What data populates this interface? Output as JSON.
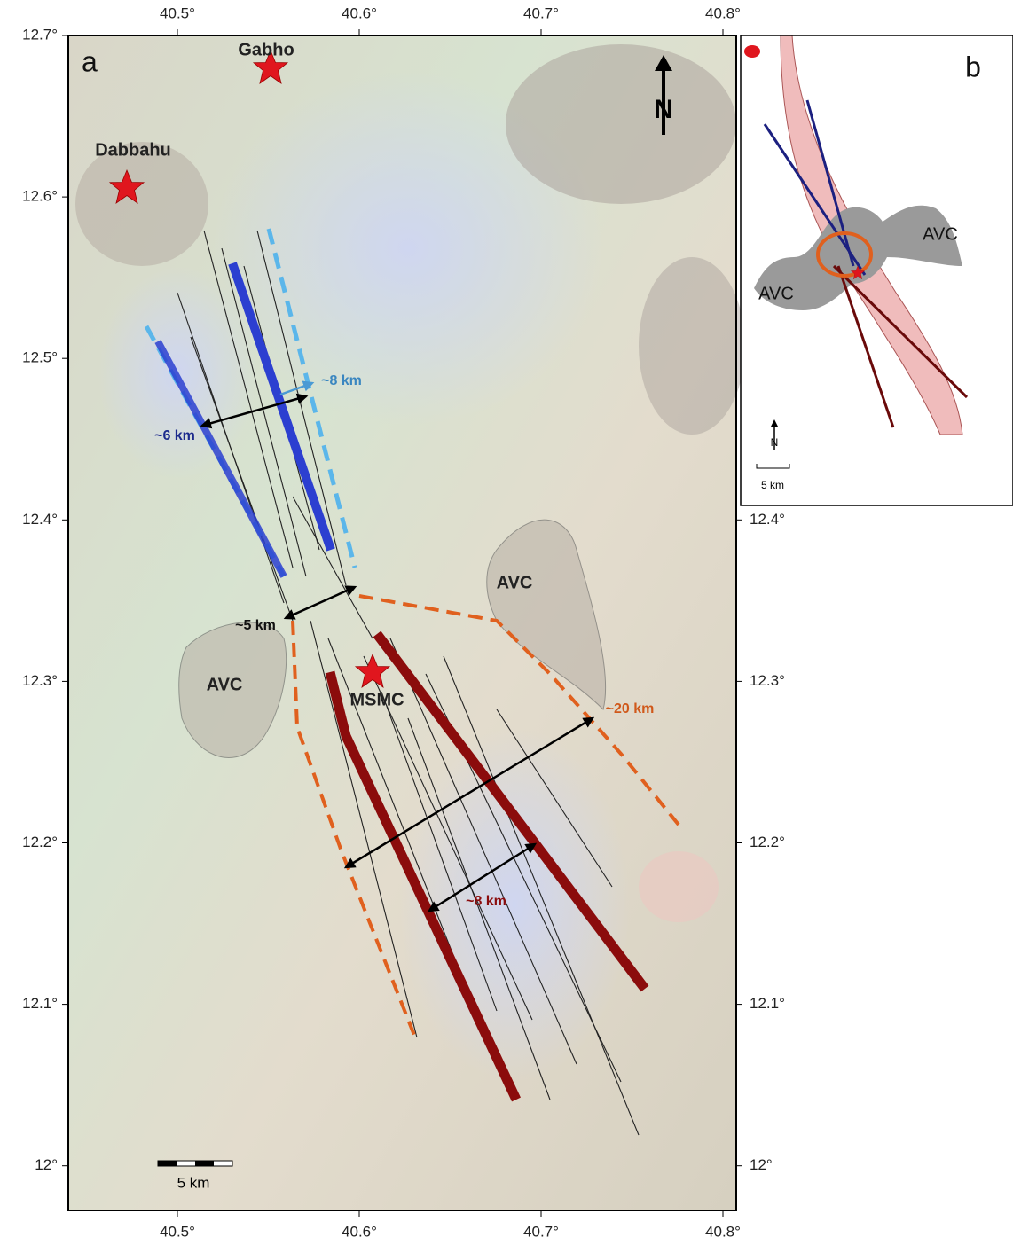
{
  "panel_a": {
    "label": "a",
    "x_ticks": [
      "40.5°",
      "40.6°",
      "40.7°",
      "40.8°"
    ],
    "y_ticks": [
      "12.7°",
      "12.6°",
      "12.5°",
      "12.4°",
      "12.3°",
      "12.2°",
      "12.1°",
      "12°"
    ],
    "places": [
      "Gabho",
      "Dabbahu",
      "MSMC"
    ],
    "units": [
      "AVC",
      "AVC"
    ],
    "distances": [
      "~8 km",
      "~6 km",
      "~5 km",
      "~20 km",
      "~8 km"
    ],
    "scale_bar": "5 km",
    "north": "N"
  },
  "panel_b": {
    "label": "b",
    "units": [
      "AVC",
      "AVC"
    ],
    "north": "N",
    "scale_bar": "5 km"
  }
}
